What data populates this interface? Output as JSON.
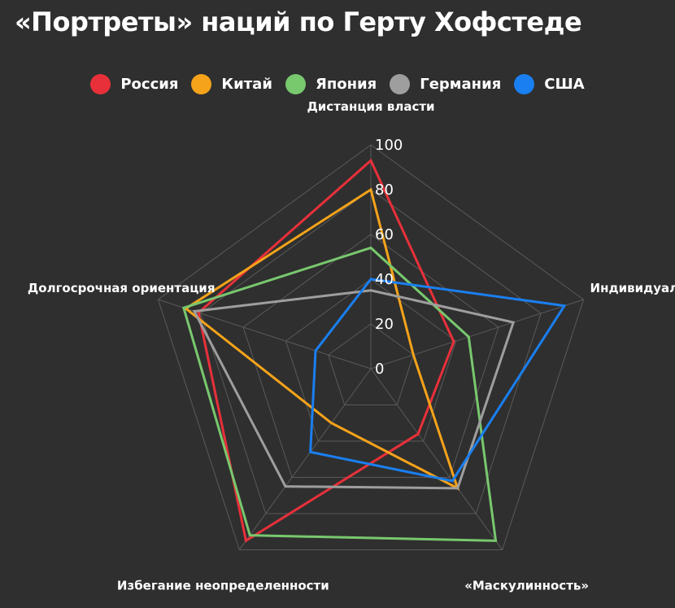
{
  "title": "«Портреты» наций по Герту Хофстеде",
  "colors": {
    "background": "#2f2f2f",
    "grid": "#5a5a5a"
  },
  "chart_data": {
    "type": "radar",
    "title": "«Портреты» наций по Герту Хофстеде",
    "axes": [
      "Дистанция власти",
      "Индивидуализм",
      "«Маскулинность»",
      "Избегание неопределенности",
      "Долгосрочная ориентация"
    ],
    "ticks": [
      "0",
      "20",
      "40",
      "60",
      "80",
      "100"
    ],
    "range": [
      0,
      100
    ],
    "legend_position": "top",
    "grid": true,
    "series": [
      {
        "name": "Россия",
        "color": "#e8303a",
        "values": [
          93,
          39,
          36,
          95,
          81
        ]
      },
      {
        "name": "Китай",
        "color": "#f5a31a",
        "values": [
          80,
          20,
          66,
          30,
          87
        ]
      },
      {
        "name": "Япония",
        "color": "#78c86e",
        "values": [
          54,
          46,
          95,
          92,
          88
        ]
      },
      {
        "name": "Германия",
        "color": "#9e9e9e",
        "values": [
          35,
          67,
          66,
          65,
          83
        ]
      },
      {
        "name": "США",
        "color": "#1a7ff0",
        "values": [
          40,
          91,
          62,
          46,
          26
        ]
      }
    ]
  }
}
